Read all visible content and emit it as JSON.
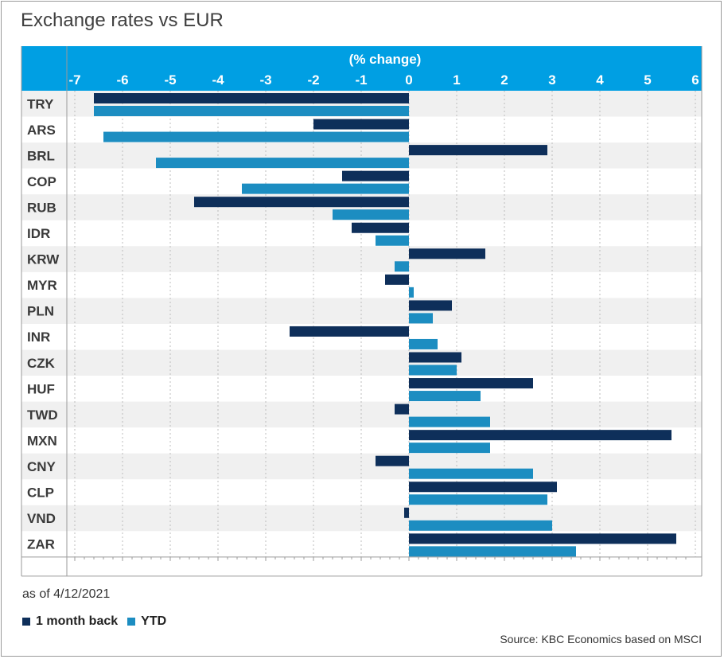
{
  "title": "Exchange rates vs EUR",
  "as_of": "as of 4/12/2021",
  "source": "Source: KBC Economics based on MSCI",
  "colors": {
    "header": "#009fe3",
    "series_1": "#0e2f5a",
    "series_2": "#1c8dc1",
    "band": "#f0f0f0"
  },
  "chart_data": {
    "type": "bar",
    "orientation": "horizontal",
    "title": "Exchange rates vs EUR",
    "xlabel": "(% change)",
    "ylabel": "",
    "xlim": [
      -7.2,
      6
    ],
    "x_ticks": [
      -7,
      -6,
      -5,
      -4,
      -3,
      -2,
      -1,
      0,
      1,
      2,
      3,
      4,
      5,
      6
    ],
    "x_axis_position": "top",
    "grid": true,
    "legend": "bottom-left",
    "categories": [
      "TRY",
      "ARS",
      "BRL",
      "COP",
      "RUB",
      "IDR",
      "KRW",
      "MYR",
      "PLN",
      "INR",
      "CZK",
      "HUF",
      "TWD",
      "MXN",
      "CNY",
      "CLP",
      "VND",
      "ZAR"
    ],
    "series": [
      {
        "name": "1 month back",
        "color": "#0e2f5a",
        "values": [
          -6.6,
          -2.0,
          2.9,
          -1.4,
          -4.5,
          -1.2,
          1.6,
          -0.5,
          0.9,
          -2.5,
          1.1,
          2.6,
          -0.3,
          5.5,
          -0.7,
          3.1,
          -0.1,
          5.6
        ]
      },
      {
        "name": "YTD",
        "color": "#1c8dc1",
        "values": [
          -6.6,
          -6.4,
          -5.3,
          -3.5,
          -1.6,
          -0.7,
          -0.3,
          0.1,
          0.5,
          0.6,
          1.0,
          1.5,
          1.7,
          1.7,
          2.6,
          2.9,
          3.0,
          3.5
        ]
      }
    ]
  }
}
